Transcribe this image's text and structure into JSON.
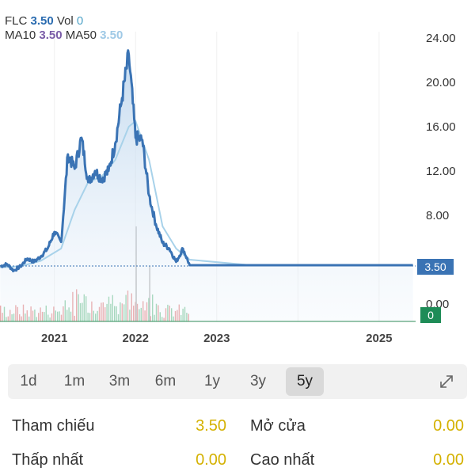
{
  "legend": {
    "symbol": "FLC",
    "price": "3.50",
    "vol_label": "Vol",
    "vol": "0",
    "ma10_label": "MA10",
    "ma10": "3.50",
    "ma50_label": "MA50",
    "ma50": "3.50"
  },
  "chart_data": {
    "type": "line",
    "symbol": "FLC",
    "x_ticks": [
      "2021",
      "2022",
      "2023",
      "2025"
    ],
    "y_ticks": [
      "24.00",
      "20.00",
      "16.00",
      "12.00",
      "8.00",
      "0.00"
    ],
    "ylim": [
      0,
      24
    ],
    "last_price_label": "3.50",
    "last_volume_label": "0",
    "series": [
      {
        "x": [
          "2020-05",
          "2020-06",
          "2020-07",
          "2020-08",
          "2020-09",
          "2020-10",
          "2020-11",
          "2020-12",
          "2021-01",
          "2021-02",
          "2021-03",
          "2021-04",
          "2021-05",
          "2021-06",
          "2021-07",
          "2021-08",
          "2021-09",
          "2021-10",
          "2021-11",
          "2021-12",
          "2022-01",
          "2022-02",
          "2022-03",
          "2022-04",
          "2022-05",
          "2022-06",
          "2022-07",
          "2022-08",
          "2022-09",
          "2023-06",
          "2024-06",
          "2025-06"
        ],
        "values": [
          3.4,
          3.6,
          3.0,
          3.4,
          4.1,
          3.8,
          4.3,
          5.0,
          6.5,
          5.6,
          13.5,
          12.2,
          15.0,
          11.0,
          12.0,
          11.3,
          12.0,
          14.5,
          18.6,
          22.5,
          15.0,
          14.8,
          9.8,
          7.2,
          5.5,
          5.0,
          3.8,
          5.0,
          3.5,
          3.5,
          3.5,
          3.5
        ]
      },
      {
        "x": [
          "2020-05",
          "2020-08",
          "2020-11",
          "2021-02",
          "2021-04",
          "2021-06",
          "2021-08",
          "2021-10",
          "2021-12",
          "2022-01",
          "2022-03",
          "2022-05",
          "2022-07",
          "2022-09",
          "2023-06",
          "2025-06"
        ],
        "values": [
          3.3,
          3.4,
          3.9,
          5.0,
          8.5,
          11.0,
          11.5,
          13.0,
          16.0,
          16.5,
          13.0,
          7.0,
          5.0,
          4.0,
          3.5,
          3.5
        ]
      }
    ]
  }
}
